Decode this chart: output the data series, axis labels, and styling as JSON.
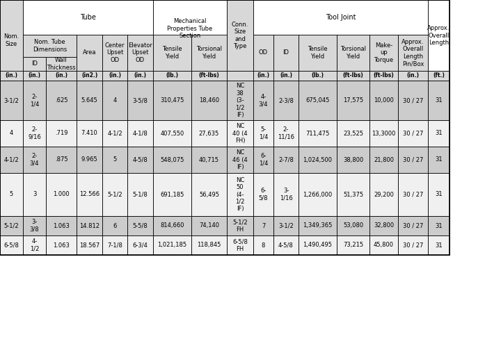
{
  "col_units": [
    "(in.)",
    "(in.)",
    "(in.)",
    "(in2.)",
    "(in.)",
    "(in.)",
    "(lb.)",
    "(ft-lbs)",
    "",
    "(in.)",
    "(in.)",
    "(lb.)",
    "(ft-lbs)",
    "(ft-lbs)",
    "(in.)",
    "(ft.)"
  ],
  "rows": [
    [
      "3-1/2",
      "2-\n1/4",
      ".625",
      "5.645",
      "4",
      "3-5/8",
      "310,475",
      "18,460",
      "NC\n38\n(3-\n1/2\nIF)",
      "4-\n3/4",
      "2-3/8",
      "675,045",
      "17,575",
      "10,000",
      "30 / 27",
      "31"
    ],
    [
      "4",
      "2-\n9/16",
      ".719",
      "7.410",
      "4-1/2",
      "4-1/8",
      "407,550",
      "27,635",
      "NC\n40 (4\nFH)",
      "5-\n1/4",
      "2-\n11/16",
      "711,475",
      "23,525",
      "13,3000",
      "30 / 27",
      "31"
    ],
    [
      "4-1/2",
      "2-\n3/4",
      ".875",
      "9.965",
      "5",
      "4-5/8",
      "548,075",
      "40,715",
      "NC\n46 (4\nIF)",
      "6-\n1/4",
      "2-7/8",
      "1,024,500",
      "38,800",
      "21,800",
      "30 / 27",
      "31"
    ],
    [
      "5",
      "3",
      "1.000",
      "12.566",
      "5-1/2",
      "5-1/8",
      "691,185",
      "56,495",
      "NC\n50\n(4-\n1/2\nIF)",
      "6-\n5/8",
      "3-\n1/16",
      "1,266,000",
      "51,375",
      "29,200",
      "30 / 27",
      "31"
    ],
    [
      "5-1/2",
      "3-\n3/8",
      "1.063",
      "14.812",
      "6",
      "5-5/8",
      "814,660",
      "74,140",
      "5-1/2\nFH",
      "7",
      "3-1/2",
      "1,349,365",
      "53,080",
      "32,800",
      "30 / 27",
      "31"
    ],
    [
      "6-5/8",
      "4-\n1/2",
      "1.063",
      "18.567",
      "7-1/8",
      "6-3/4",
      "1,021,185",
      "118,845",
      "6-5/8\nFH",
      "8",
      "4-5/8",
      "1,490,495",
      "73,215",
      "45,800",
      "30 / 27",
      "31"
    ]
  ],
  "row_colors": [
    "#cccccc",
    "#f0f0f0",
    "#cccccc",
    "#f0f0f0",
    "#cccccc",
    "#f0f0f0"
  ],
  "header_bg": "#d8d8d8",
  "white_bg": "#ffffff",
  "border_color": "#000000",
  "text_color": "#000000",
  "font_size": 6.0
}
